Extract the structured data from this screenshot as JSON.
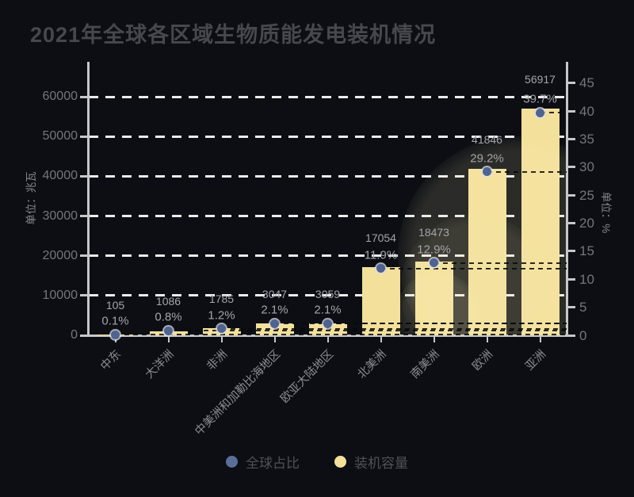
{
  "title": "2021年全球各区域生物质能发电装机情况",
  "legend": {
    "items": [
      {
        "label": "全球占比",
        "color": "#5b6e99"
      },
      {
        "label": "装机容量",
        "color": "#f3e09a"
      }
    ]
  },
  "chart_data": {
    "type": "bar",
    "title": "2021年全球各区域生物质能发电装机情况",
    "categories": [
      "中东",
      "大洋洲",
      "非洲",
      "中美洲和加勒比海地区",
      "欧亚大陆地区",
      "北美洲",
      "南美洲",
      "欧洲",
      "亚洲"
    ],
    "series": [
      {
        "name": "装机容量",
        "type": "bar",
        "axis": "left",
        "values": [
          105,
          1086,
          1785,
          3047,
          3059,
          17054,
          18473,
          41846,
          56917
        ],
        "data_labels": [
          "105",
          "1086",
          "1785",
          "3047",
          "3059",
          "17054",
          "18473",
          "41846",
          "56917"
        ],
        "color": "#f3e09a"
      },
      {
        "name": "全球占比",
        "type": "scatter",
        "axis": "right",
        "values": [
          0.1,
          0.8,
          1.2,
          2.1,
          2.1,
          11.9,
          12.9,
          29.2,
          39.7
        ],
        "data_labels": [
          "0.1%",
          "0.8%",
          "1.2%",
          "2.1%",
          "2.1%",
          "11.9%",
          "12.9%",
          "29.2%",
          "39.7%"
        ],
        "color": "#4f6390"
      }
    ],
    "left_axis": {
      "title": "单位：兆瓦",
      "ticks": [
        0,
        10000,
        20000,
        30000,
        40000,
        50000,
        60000
      ],
      "ylim": [
        0,
        60000
      ]
    },
    "right_axis": {
      "title": "单位：%",
      "ticks": [
        0,
        5,
        10,
        15,
        20,
        25,
        30,
        35,
        40,
        45
      ],
      "ylim": [
        0,
        45
      ]
    },
    "grid": "white dashed horizontal",
    "legend_position": "bottom center"
  }
}
